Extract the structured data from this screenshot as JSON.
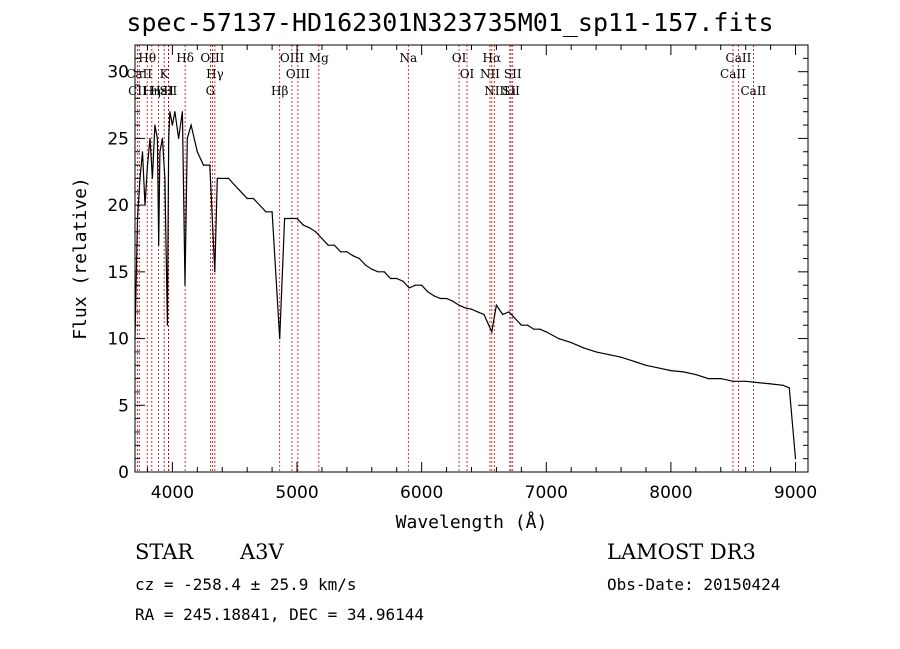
{
  "chart_data": {
    "type": "line",
    "title": "spec-57137-HD162301N323735M01_sp11-157.fits",
    "xlabel": "Wavelength (Å)",
    "ylabel": "Flux (relative)",
    "xlim": [
      3700,
      9100
    ],
    "ylim": [
      0,
      32
    ],
    "xticks": [
      4000,
      5000,
      6000,
      7000,
      8000,
      9000
    ],
    "yticks": [
      0,
      5,
      10,
      15,
      20,
      25,
      30
    ],
    "series": [
      {
        "name": "flux",
        "x": [
          3700,
          3720,
          3740,
          3760,
          3780,
          3800,
          3820,
          3840,
          3860,
          3880,
          3890,
          3900,
          3920,
          3940,
          3960,
          3970,
          3980,
          4000,
          4020,
          4050,
          4080,
          4101,
          4120,
          4150,
          4200,
          4250,
          4300,
          4340,
          4360,
          4400,
          4450,
          4500,
          4550,
          4600,
          4650,
          4700,
          4750,
          4800,
          4861,
          4900,
          4950,
          5000,
          5050,
          5100,
          5150,
          5200,
          5250,
          5300,
          5350,
          5400,
          5450,
          5500,
          5550,
          5600,
          5650,
          5700,
          5750,
          5800,
          5850,
          5900,
          5950,
          6000,
          6050,
          6100,
          6150,
          6200,
          6250,
          6300,
          6350,
          6400,
          6450,
          6500,
          6563,
          6600,
          6650,
          6700,
          6750,
          6800,
          6850,
          6900,
          6950,
          7000,
          7100,
          7200,
          7300,
          7400,
          7500,
          7600,
          7700,
          7800,
          7900,
          8000,
          8100,
          8200,
          8300,
          8400,
          8500,
          8600,
          8700,
          8800,
          8900,
          8950,
          9000
        ],
        "values": [
          10,
          19,
          22,
          24,
          20,
          23,
          25,
          22,
          26,
          25,
          17,
          24,
          25,
          22,
          11,
          25,
          27,
          26,
          27,
          25,
          27,
          14,
          25,
          26,
          24,
          23,
          23,
          15,
          22,
          22,
          22,
          21.5,
          21,
          20.5,
          20.5,
          20,
          19.5,
          19.5,
          10,
          19,
          19,
          19,
          18.5,
          18.3,
          18,
          17.5,
          17,
          17,
          16.5,
          16.5,
          16.2,
          16,
          15.5,
          15.2,
          15,
          15,
          14.5,
          14.5,
          14.3,
          13.8,
          14,
          14,
          13.5,
          13.2,
          13,
          13,
          12.8,
          12.5,
          12.3,
          12.2,
          12,
          11.8,
          10.5,
          12.5,
          11.8,
          12,
          11.5,
          11,
          11,
          10.7,
          10.7,
          10.5,
          10,
          9.7,
          9.3,
          9,
          8.8,
          8.6,
          8.3,
          8,
          7.8,
          7.6,
          7.5,
          7.3,
          7,
          7,
          6.8,
          6.8,
          6.7,
          6.6,
          6.5,
          6.3,
          1
        ]
      }
    ],
    "line_markers": [
      {
        "label": "Hθ",
        "wl": 3798
      },
      {
        "label": "CaII",
        "wl": 3734
      },
      {
        "label": "CII",
        "wl": 3720
      },
      {
        "label": "Hη",
        "wl": 3835
      },
      {
        "label": "Hε",
        "wl": 3889
      },
      {
        "label": "K",
        "wl": 3934
      },
      {
        "label": "SII",
        "wl": 3968
      },
      {
        "label": "H",
        "wl": 3970
      },
      {
        "label": "Hδ",
        "wl": 4102
      },
      {
        "label": "OIII",
        "wl": 4321
      },
      {
        "label": "Hγ",
        "wl": 4341
      },
      {
        "label": "G",
        "wl": 4305
      },
      {
        "label": "OIII",
        "wl": 4959
      },
      {
        "label": "OIII",
        "wl": 5007
      },
      {
        "label": "Hβ",
        "wl": 4861
      },
      {
        "label": "Mg",
        "wl": 5175
      },
      {
        "label": "Na",
        "wl": 5893
      },
      {
        "label": "OI",
        "wl": 6300
      },
      {
        "label": "OI",
        "wl": 6364
      },
      {
        "label": "Hα",
        "wl": 6563
      },
      {
        "label": "NII",
        "wl": 6548
      },
      {
        "label": "NII",
        "wl": 6583
      },
      {
        "label": "SII",
        "wl": 6717
      },
      {
        "label": "Li",
        "wl": 6708
      },
      {
        "label": "SII",
        "wl": 6731
      },
      {
        "label": "CaII",
        "wl": 8542
      },
      {
        "label": "CaII",
        "wl": 8498
      },
      {
        "label": "CaII",
        "wl": 8662
      }
    ]
  },
  "info": {
    "object_class": "STAR",
    "subclass": "A3V",
    "survey": "LAMOST DR3",
    "cz": "cz = -258.4 ± 25.9 km/s",
    "obs_date": "Obs-Date: 20150424",
    "coords": "RA = 245.18841, DEC =  34.96144"
  },
  "colors": {
    "line_color": "#000000",
    "marker_color": "#cc0000"
  }
}
